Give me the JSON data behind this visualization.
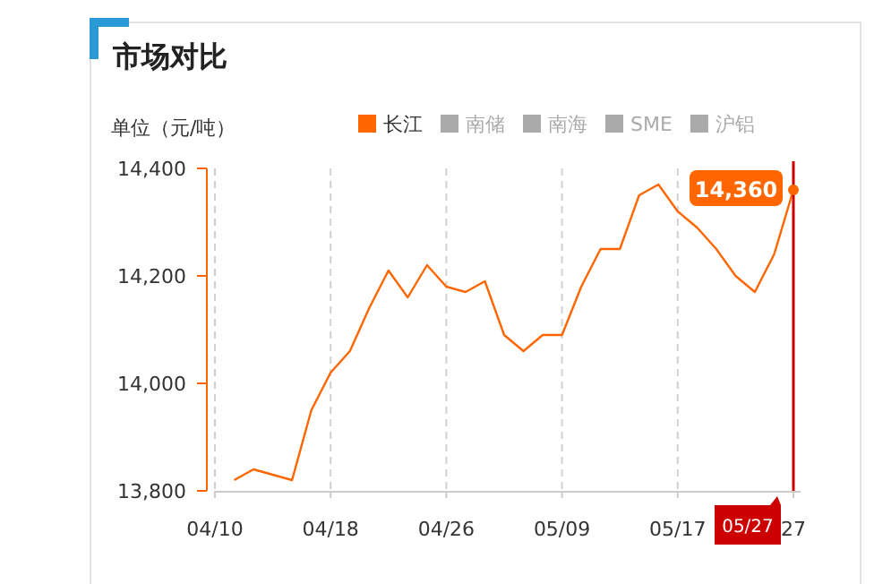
{
  "chart_data": {
    "type": "line",
    "title": "市场对比",
    "ylabel": "单位（元/吨）",
    "categories": [
      "04/10",
      null,
      null,
      null,
      null,
      null,
      "04/18",
      null,
      null,
      null,
      null,
      null,
      "04/26",
      null,
      null,
      null,
      null,
      null,
      "05/09",
      null,
      null,
      null,
      null,
      null,
      "05/17",
      null,
      null,
      null,
      null,
      null,
      "27"
    ],
    "series": [
      {
        "name": "长江",
        "color": "#ff6600",
        "values": [
          null,
          13820,
          13840,
          13830,
          13820,
          13950,
          14020,
          14060,
          14140,
          14210,
          14160,
          14220,
          14180,
          14170,
          14190,
          14090,
          14060,
          14090,
          14090,
          14180,
          14250,
          14250,
          14350,
          14370,
          14320,
          14290,
          14250,
          14200,
          14170,
          14240,
          14360
        ]
      },
      {
        "name": "南储",
        "color": "#aaaaaa",
        "values": [
          null,
          null,
          null,
          null,
          null,
          null,
          null,
          null,
          null,
          null,
          null,
          null,
          null,
          null,
          null,
          null,
          null,
          null,
          null,
          null,
          null,
          null,
          null,
          null,
          null,
          null,
          null,
          null,
          null,
          null,
          null
        ]
      },
      {
        "name": "南海",
        "color": "#aaaaaa",
        "values": [
          null,
          null,
          null,
          null,
          null,
          null,
          null,
          null,
          null,
          null,
          null,
          null,
          null,
          null,
          null,
          null,
          null,
          null,
          null,
          null,
          null,
          null,
          null,
          null,
          null,
          null,
          null,
          null,
          null,
          null,
          null
        ]
      },
      {
        "name": "SME",
        "color": "#aaaaaa",
        "values": [
          null,
          null,
          null,
          null,
          null,
          null,
          null,
          null,
          null,
          null,
          null,
          null,
          null,
          null,
          null,
          null,
          null,
          null,
          null,
          null,
          null,
          null,
          null,
          null,
          null,
          null,
          null,
          null,
          null,
          null,
          null
        ]
      },
      {
        "name": "沪铝",
        "color": "#aaaaaa",
        "values": [
          null,
          null,
          null,
          null,
          null,
          null,
          null,
          null,
          null,
          null,
          null,
          null,
          null,
          null,
          null,
          null,
          null,
          null,
          null,
          null,
          null,
          null,
          null,
          null,
          null,
          null,
          null,
          null,
          null,
          null,
          null
        ]
      }
    ],
    "ylim": [
      13800,
      14400
    ],
    "yticks": [
      {
        "value": 13800,
        "label": "13,800"
      },
      {
        "value": 14000,
        "label": "14,000"
      },
      {
        "value": 14200,
        "label": "14,200"
      },
      {
        "value": 14400,
        "label": "14,400"
      }
    ],
    "grid": "x",
    "legend": "top right",
    "marker": "none",
    "ref_lines": [
      {
        "axis": "x",
        "value": "27",
        "color": "#cc0000"
      }
    ],
    "annotations": [
      {
        "text": "14,360",
        "x": "27",
        "y": 14360
      },
      "05/27"
    ]
  }
}
